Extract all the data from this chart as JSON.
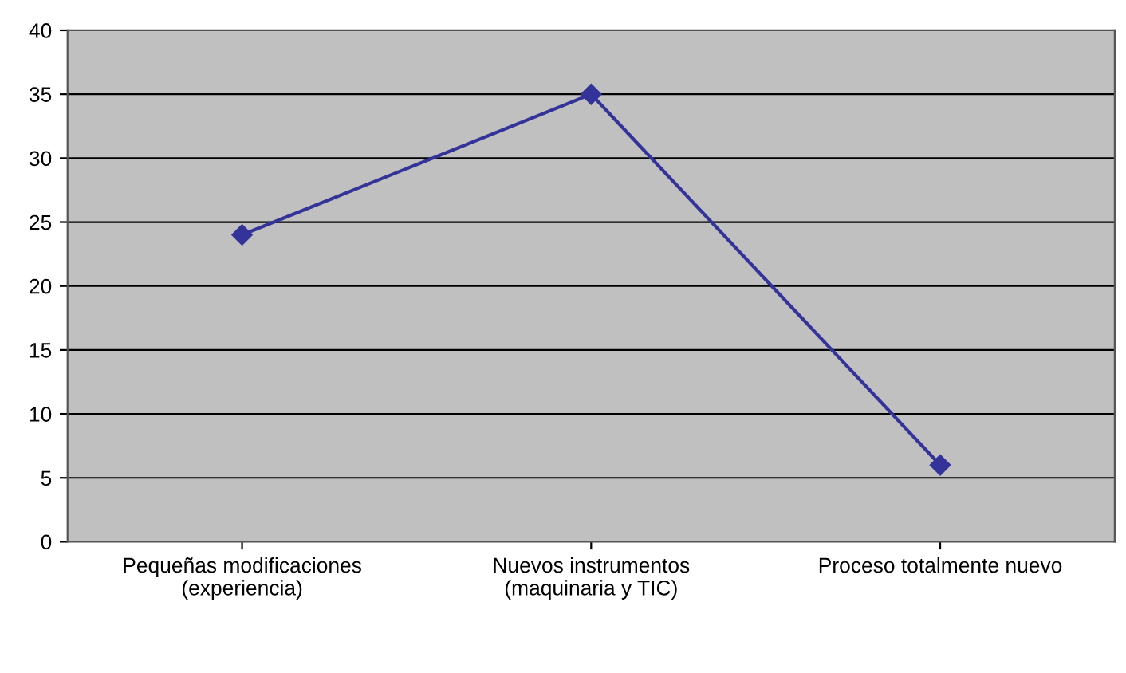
{
  "chart_data": {
    "type": "line",
    "categories": [
      "Pequeñas modificaciones\n(experiencia)",
      "Nuevos instrumentos\n(maquinaria y TIC)",
      "Proceso totalmente nuevo"
    ],
    "series": [
      {
        "color": "#333399",
        "values": [
          24,
          35,
          6
        ]
      }
    ],
    "ylim": [
      0,
      40
    ],
    "yticks": [
      0,
      5,
      10,
      15,
      20,
      25,
      30,
      35,
      40
    ],
    "grid": "y",
    "legend": false,
    "marker": "diamond",
    "line_style": "solid"
  }
}
